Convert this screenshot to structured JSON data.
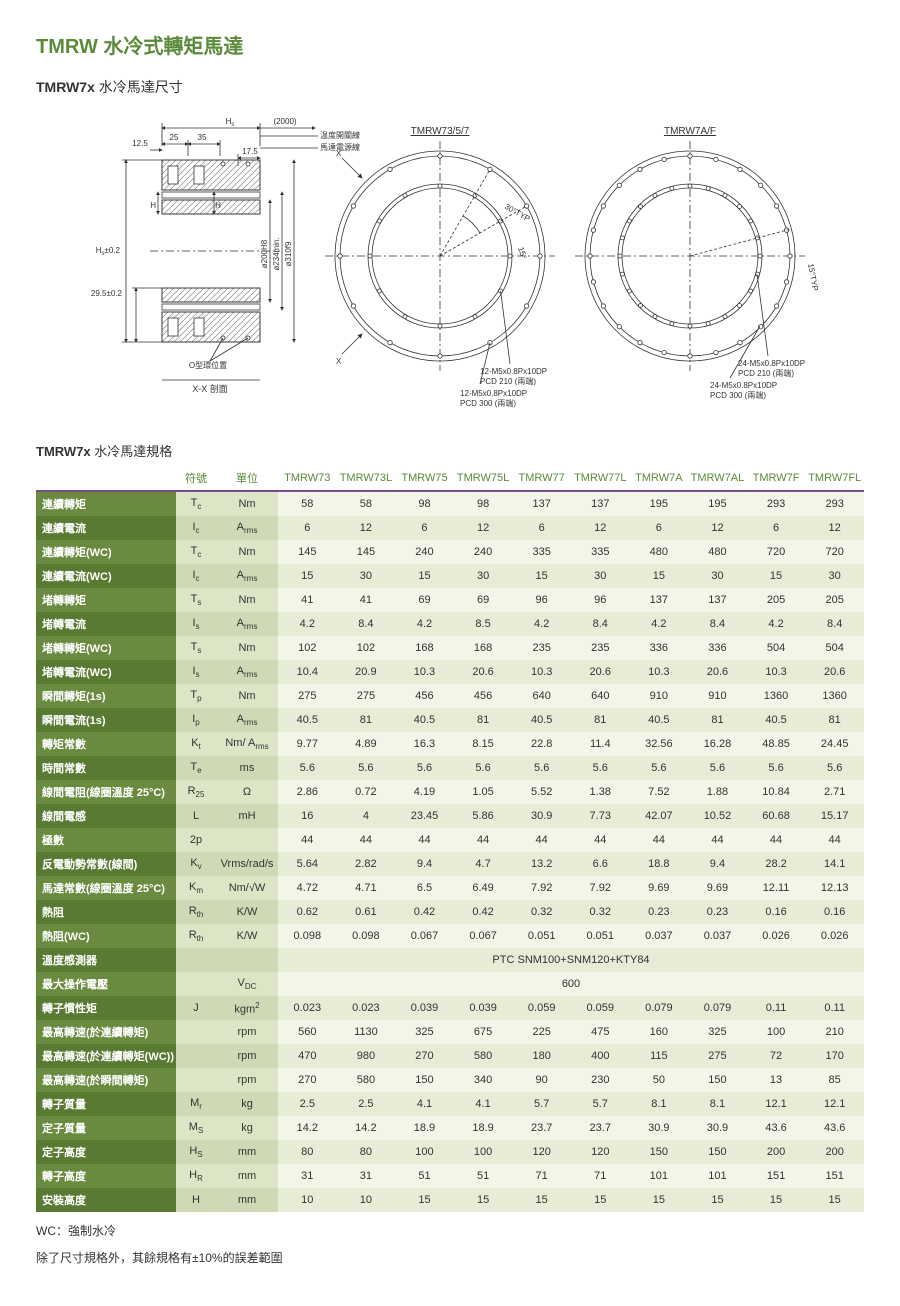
{
  "title": "TMRW  水冷式轉矩馬達",
  "subtitle_bold": "TMRW7x",
  "subtitle_rest": "  水冷馬達尺寸",
  "diagram": {
    "label_left_section": "X-X 剖面",
    "label_oring": "O型環位置",
    "label_temp_switch": "温度開關線",
    "label_motor_power": "馬達電源線",
    "dim_2000": "(2000)",
    "dim_Hs": "H",
    "dim_25": "25",
    "dim_35": "35",
    "dim_12_5": "12.5",
    "dim_17_5": "17.5",
    "dim_H_left": "H",
    "dim_H_right": "H",
    "dim_phi200": "ø200H8",
    "dim_phi234": "ø234min.",
    "dim_phi310": "ø310f9",
    "dim_Hs02": "H",
    "dim_Hs02_suffix": "±0.2",
    "dim_29_5": "29.5±0.2",
    "circle1_title": "TMRW73/5/7",
    "circle1_30typ": "30°TYP",
    "circle1_15": "15°",
    "circle1_note1a": "12-M5x0.8Px10DP",
    "circle1_note1b": "PCD 210 (兩端)",
    "circle1_note2a": "12-M5x0.8Px10DP",
    "circle1_note2b": "PCD 300 (兩端)",
    "circle1_X": "X",
    "circle2_title": "TMRW7A/F",
    "circle2_15typ": "15°TYP",
    "circle2_note1a": "24-M5x0.8Px10DP",
    "circle2_note1b": "PCD 210 (兩端)",
    "circle2_note2a": "24-M5x0.8Px10DP",
    "circle2_note2b": "PCD 300 (兩端)"
  },
  "spec_title_bold": "TMRW7x",
  "spec_title_rest": "  水冷馬達規格",
  "columns_fixed": [
    "符號",
    "單位"
  ],
  "models": [
    "TMRW73",
    "TMRW73L",
    "TMRW75",
    "TMRW75L",
    "TMRW77",
    "TMRW77L",
    "TMRW7A",
    "TMRW7AL",
    "TMRW7F",
    "TMRW7FL"
  ],
  "rows": [
    {
      "label": "連續轉矩",
      "sym": "T<sub>c</sub>",
      "unit": "Nm",
      "vals": [
        "58",
        "58",
        "98",
        "98",
        "137",
        "137",
        "195",
        "195",
        "293",
        "293"
      ]
    },
    {
      "label": "連續電流",
      "sym": "I<sub>c</sub>",
      "unit": "A<sub>rms</sub>",
      "vals": [
        "6",
        "12",
        "6",
        "12",
        "6",
        "12",
        "6",
        "12",
        "6",
        "12"
      ]
    },
    {
      "label": "連續轉矩(WC)",
      "sym": "T<sub>c</sub>",
      "unit": "Nm",
      "vals": [
        "145",
        "145",
        "240",
        "240",
        "335",
        "335",
        "480",
        "480",
        "720",
        "720"
      ]
    },
    {
      "label": "連續電流(WC)",
      "sym": "I<sub>c</sub>",
      "unit": "A<sub>rms</sub>",
      "vals": [
        "15",
        "30",
        "15",
        "30",
        "15",
        "30",
        "15",
        "30",
        "15",
        "30"
      ]
    },
    {
      "label": "堵轉轉矩",
      "sym": "T<sub>s</sub>",
      "unit": "Nm",
      "vals": [
        "41",
        "41",
        "69",
        "69",
        "96",
        "96",
        "137",
        "137",
        "205",
        "205"
      ]
    },
    {
      "label": "堵轉電流",
      "sym": "I<sub>s</sub>",
      "unit": "A<sub>rms</sub>",
      "vals": [
        "4.2",
        "8.4",
        "4.2",
        "8.5",
        "4.2",
        "8.4",
        "4.2",
        "8.4",
        "4.2",
        "8.4"
      ]
    },
    {
      "label": "堵轉轉矩(WC)",
      "sym": "T<sub>s</sub>",
      "unit": "Nm",
      "vals": [
        "102",
        "102",
        "168",
        "168",
        "235",
        "235",
        "336",
        "336",
        "504",
        "504"
      ]
    },
    {
      "label": "堵轉電流(WC)",
      "sym": "I<sub>s</sub>",
      "unit": "A<sub>rms</sub>",
      "vals": [
        "10.4",
        "20.9",
        "10.3",
        "20.6",
        "10.3",
        "20.6",
        "10.3",
        "20.6",
        "10.3",
        "20.6"
      ]
    },
    {
      "label": "瞬間轉矩(1s)",
      "sym": "T<sub>p</sub>",
      "unit": "Nm",
      "vals": [
        "275",
        "275",
        "456",
        "456",
        "640",
        "640",
        "910",
        "910",
        "1360",
        "1360"
      ]
    },
    {
      "label": "瞬間電流(1s)",
      "sym": "I<sub>p</sub>",
      "unit": "A<sub>rms</sub>",
      "vals": [
        "40.5",
        "81",
        "40.5",
        "81",
        "40.5",
        "81",
        "40.5",
        "81",
        "40.5",
        "81"
      ]
    },
    {
      "label": "轉矩常數",
      "sym": "K<sub>t</sub>",
      "unit": "Nm/ A<sub>rms</sub>",
      "vals": [
        "9.77",
        "4.89",
        "16.3",
        "8.15",
        "22.8",
        "11.4",
        "32.56",
        "16.28",
        "48.85",
        "24.45"
      ]
    },
    {
      "label": "時間常數",
      "sym": "T<sub>e</sub>",
      "unit": "ms",
      "vals": [
        "5.6",
        "5.6",
        "5.6",
        "5.6",
        "5.6",
        "5.6",
        "5.6",
        "5.6",
        "5.6",
        "5.6"
      ]
    },
    {
      "label": "線間電阻(線圈溫度 25°C)",
      "sym": "R<sub>25</sub>",
      "unit": "Ω",
      "vals": [
        "2.86",
        "0.72",
        "4.19",
        "1.05",
        "5.52",
        "1.38",
        "7.52",
        "1.88",
        "10.84",
        "2.71"
      ]
    },
    {
      "label": "線間電感",
      "sym": "L",
      "unit": "mH",
      "vals": [
        "16",
        "4",
        "23.45",
        "5.86",
        "30.9",
        "7.73",
        "42.07",
        "10.52",
        "60.68",
        "15.17"
      ]
    },
    {
      "label": "極數",
      "sym": "2p",
      "unit": "",
      "vals": [
        "44",
        "44",
        "44",
        "44",
        "44",
        "44",
        "44",
        "44",
        "44",
        "44"
      ]
    },
    {
      "label": "反電動勢常數(線間)",
      "sym": "K<sub>v</sub>",
      "unit": "Vrms/rad/s",
      "vals": [
        "5.64",
        "2.82",
        "9.4",
        "4.7",
        "13.2",
        "6.6",
        "18.8",
        "9.4",
        "28.2",
        "14.1"
      ]
    },
    {
      "label": "馬達常數(線圈溫度 25°C)",
      "sym": "K<sub>m</sub>",
      "unit": "Nm/√W",
      "vals": [
        "4.72",
        "4.71",
        "6.5",
        "6.49",
        "7.92",
        "7.92",
        "9.69",
        "9.69",
        "12.11",
        "12.13"
      ]
    },
    {
      "label": "熱阻",
      "sym": "R<sub>th</sub>",
      "unit": "K/W",
      "vals": [
        "0.62",
        "0.61",
        "0.42",
        "0.42",
        "0.32",
        "0.32",
        "0.23",
        "0.23",
        "0.16",
        "0.16"
      ]
    },
    {
      "label": "熱阻(WC)",
      "sym": "R<sub>th</sub>",
      "unit": "K/W",
      "vals": [
        "0.098",
        "0.098",
        "0.067",
        "0.067",
        "0.051",
        "0.051",
        "0.037",
        "0.037",
        "0.026",
        "0.026"
      ]
    },
    {
      "label": "溫度感測器",
      "sym": "",
      "unit": "",
      "span": "PTC SNM100+SNM120+KTY84"
    },
    {
      "label": "最大操作電壓",
      "sym": "",
      "unit": "V<sub>DC</sub>",
      "span": "600"
    },
    {
      "label": "轉子慣性矩",
      "sym": "J",
      "unit": "kgm<sup>2</sup>",
      "vals": [
        "0.023",
        "0.023",
        "0.039",
        "0.039",
        "0.059",
        "0.059",
        "0.079",
        "0.079",
        "0.11",
        "0.11"
      ]
    },
    {
      "label": "最高轉速(於連續轉矩)",
      "sym": "",
      "unit": "rpm",
      "vals": [
        "560",
        "1130",
        "325",
        "675",
        "225",
        "475",
        "160",
        "325",
        "100",
        "210"
      ]
    },
    {
      "label": "最高轉速(於連續轉矩(WC))",
      "sym": "",
      "unit": "rpm",
      "vals": [
        "470",
        "980",
        "270",
        "580",
        "180",
        "400",
        "115",
        "275",
        "72",
        "170"
      ]
    },
    {
      "label": "最高轉速(於瞬間轉矩)",
      "sym": "",
      "unit": "rpm",
      "vals": [
        "270",
        "580",
        "150",
        "340",
        "90",
        "230",
        "50",
        "150",
        "13",
        "85"
      ]
    },
    {
      "label": "轉子質量",
      "sym": "M<sub>r</sub>",
      "unit": "kg",
      "vals": [
        "2.5",
        "2.5",
        "4.1",
        "4.1",
        "5.7",
        "5.7",
        "8.1",
        "8.1",
        "12.1",
        "12.1"
      ]
    },
    {
      "label": "定子質量",
      "sym": "M<sub>S</sub>",
      "unit": "kg",
      "vals": [
        "14.2",
        "14.2",
        "18.9",
        "18.9",
        "23.7",
        "23.7",
        "30.9",
        "30.9",
        "43.6",
        "43.6"
      ]
    },
    {
      "label": "定子高度",
      "sym": "H<sub>S</sub>",
      "unit": "mm",
      "vals": [
        "80",
        "80",
        "100",
        "100",
        "120",
        "120",
        "150",
        "150",
        "200",
        "200"
      ]
    },
    {
      "label": "轉子高度",
      "sym": "H<sub>R</sub>",
      "unit": "mm",
      "vals": [
        "31",
        "31",
        "51",
        "51",
        "71",
        "71",
        "101",
        "101",
        "151",
        "151"
      ]
    },
    {
      "label": "安裝高度",
      "sym": "H",
      "unit": "mm",
      "vals": [
        "10",
        "10",
        "15",
        "15",
        "15",
        "15",
        "15",
        "15",
        "15",
        "15"
      ]
    }
  ],
  "footnote1": "WC：強制水冷",
  "footnote2": "除了尺寸規格外，其餘規格有±10%的誤差範圍",
  "colors": {
    "accent": "#5a8a3a",
    "header_rule": "#7a4a8a",
    "label_odd": "#6a8a3f",
    "label_even": "#5a7a34",
    "val_odd": "#f2f5e8",
    "val_even": "#e6ecd6",
    "sym_odd": "#dde5c7",
    "sym_even": "#cfd9b5"
  },
  "table_layout": {
    "col_label_w": 140,
    "col_sym_w": 40,
    "col_unit_w": 62,
    "col_val_w": 58
  }
}
